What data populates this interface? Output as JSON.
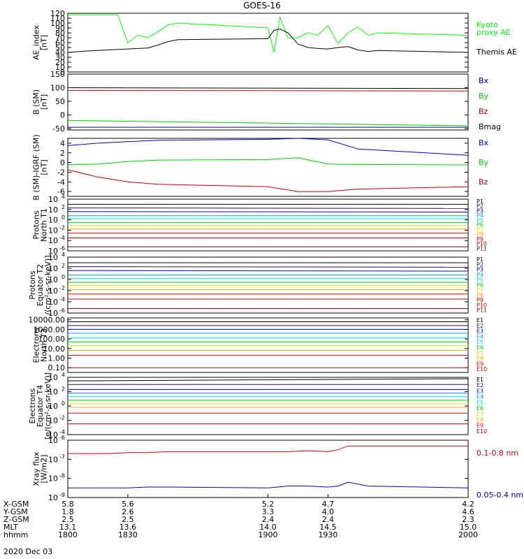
{
  "title": "GOES-16",
  "date_label": "2020 Dec 03",
  "chart_data": [
    {
      "type": "line",
      "panel": "ae_index",
      "ylabel": [
        "AE_index",
        "[nT]"
      ],
      "ylim": [
        0,
        120
      ],
      "yticks": [
        0,
        10,
        20,
        30,
        40,
        50,
        60,
        70,
        80,
        90,
        100,
        110,
        120
      ],
      "yticklabels": [
        "0",
        "10",
        "20",
        "30",
        "40",
        "50",
        "60",
        "70",
        "80",
        "90",
        "100",
        "110",
        "120"
      ],
      "x": [
        1800,
        1810,
        1820,
        1825,
        1830,
        1835,
        1840,
        1845,
        1850,
        1855,
        1900,
        1903,
        1906,
        1910,
        1915,
        1920,
        1925,
        1930,
        1935,
        1940,
        1945,
        1950,
        1955,
        2000
      ],
      "series": [
        {
          "name": "Kyoto proxy AE",
          "legend": [
            "Kyoto",
            "proxy AE"
          ],
          "color": "#00ff00",
          "values": [
            117,
            117,
            117,
            117,
            60,
            75,
            70,
            82,
            96,
            100,
            90,
            40,
            112,
            70,
            70,
            80,
            75,
            95,
            58,
            80,
            92,
            75,
            80,
            75
          ]
        },
        {
          "name": "Themis AE",
          "legend": [
            "Themis AE"
          ],
          "color": "#000000",
          "values": [
            40,
            43,
            45,
            46,
            47,
            48,
            49,
            55,
            62,
            66,
            68,
            85,
            88,
            80,
            57,
            50,
            48,
            47,
            50,
            52,
            45,
            42,
            44,
            40
          ]
        }
      ]
    },
    {
      "type": "line",
      "panel": "b_sm",
      "ylabel": [
        "B (SM)",
        "[nT]"
      ],
      "ylim": [
        -55,
        150
      ],
      "yticks": [
        -50,
        0,
        50,
        100,
        150
      ],
      "yticklabels": [
        "-50",
        "0",
        "50",
        "100",
        "150"
      ],
      "x": [
        1800,
        2000
      ],
      "series": [
        {
          "name": "Bx",
          "color": "#0000cc",
          "values": [
            -45,
            -45
          ]
        },
        {
          "name": "By",
          "color": "#00cc00",
          "values": [
            -20,
            -40
          ]
        },
        {
          "name": "Bz",
          "color": "#cc0000",
          "values": [
            90,
            88
          ]
        },
        {
          "name": "Bmag",
          "color": "#000000",
          "values": [
            100,
            97
          ]
        }
      ]
    },
    {
      "type": "line",
      "panel": "b_minus_igrf",
      "ylabel": [
        "B (SM)-IGRF (SM)",
        "[nT]"
      ],
      "ylim": [
        -7,
        5
      ],
      "yticks": [
        -6,
        -4,
        -2,
        0,
        2,
        4
      ],
      "yticklabels": [
        "-6",
        "-4",
        "-2",
        "0",
        "2",
        "4"
      ],
      "x": [
        1800,
        1815,
        1830,
        1845,
        1900,
        1915,
        1930,
        1945,
        2000
      ],
      "series": [
        {
          "name": "Bx",
          "color": "#0000cc",
          "values": [
            3.5,
            4.0,
            4.3,
            4.6,
            4.8,
            5.0,
            4.7,
            2.8,
            1.5
          ]
        },
        {
          "name": "By",
          "color": "#00cc00",
          "values": [
            -0.5,
            -0.3,
            0.2,
            0.5,
            0.6,
            1.0,
            -0.3,
            -0.4,
            -0.5
          ]
        },
        {
          "name": "Bz",
          "color": "#cc0000",
          "values": [
            -1.5,
            -3.0,
            -4.0,
            -4.5,
            -5.0,
            -6.0,
            -6.0,
            -5.5,
            -5.0
          ]
        }
      ]
    },
    {
      "type": "line",
      "panel": "protons_north_t1",
      "yscale": "log",
      "ylabel": [
        "Protons",
        "North T1"
      ],
      "ylim_exp": [
        -6,
        4
      ],
      "ytick_exps": [
        -6,
        -4,
        -2,
        0,
        2,
        4
      ],
      "yticklabels": [
        "10",
        "10",
        "10",
        "10",
        "10",
        "10"
      ],
      "ytick_superscripts": [
        "-6",
        "-4",
        "-2",
        "0",
        "2",
        "4"
      ],
      "x": [
        1800,
        2000
      ],
      "series": [
        {
          "name": "P1",
          "color": "#000000",
          "exp": [
            3.0,
            3.0
          ]
        },
        {
          "name": "P2",
          "color": "#3a0066",
          "exp": [
            2.3,
            2.2
          ]
        },
        {
          "name": "P3",
          "color": "#0000cc",
          "exp": [
            1.6,
            1.5
          ]
        },
        {
          "name": "P4",
          "color": "#0099ff",
          "exp": [
            0.8,
            0.8
          ]
        },
        {
          "name": "P5",
          "color": "#00dddd",
          "exp": [
            0.2,
            0.2
          ]
        },
        {
          "name": "P6",
          "color": "#00cc00",
          "exp": [
            -0.5,
            -0.5
          ]
        },
        {
          "name": "P7",
          "color": "#dddd00",
          "exp": [
            -1.1,
            -1.1
          ]
        },
        {
          "name": "P8",
          "color": "#ffaa00",
          "exp": [
            -1.8,
            -1.8
          ]
        },
        {
          "name": "P9",
          "color": "#ee0000",
          "exp": [
            -2.6,
            -2.6
          ]
        },
        {
          "name": "P10",
          "color": "#bb0000",
          "exp": [
            -3.5,
            -3.5
          ]
        },
        {
          "name": "P11",
          "color": "#880000",
          "exp": [
            -5.2,
            -5.2
          ]
        }
      ],
      "legend": [
        "P1",
        "P2",
        "P3",
        "P4",
        "P5",
        "P6",
        "P7",
        "P8",
        "P9",
        "P10",
        "P11"
      ]
    },
    {
      "type": "line",
      "panel": "protons_equator_t2",
      "yscale": "log",
      "ylabel": [
        "Protons",
        "Equator T2",
        "/(cm²-s-sr-keV)]"
      ],
      "ylim_exp": [
        -6,
        4
      ],
      "ytick_exps": [
        -6,
        -4,
        -2,
        0,
        2,
        4
      ],
      "yticklabels": [
        "10",
        "10",
        "10",
        "10",
        "10",
        "10"
      ],
      "ytick_superscripts": [
        "-6",
        "-4",
        "-2",
        "0",
        "2",
        "4"
      ],
      "x": [
        1800,
        2000
      ],
      "series": [
        {
          "name": "P1",
          "color": "#000000",
          "exp": [
            3.0,
            3.0
          ]
        },
        {
          "name": "P2",
          "color": "#3a0066",
          "exp": [
            2.3,
            2.2
          ]
        },
        {
          "name": "P3",
          "color": "#0000cc",
          "exp": [
            1.6,
            1.5
          ]
        },
        {
          "name": "P4",
          "color": "#0099ff",
          "exp": [
            0.8,
            0.8
          ]
        },
        {
          "name": "P5",
          "color": "#00dddd",
          "exp": [
            0.2,
            0.2
          ]
        },
        {
          "name": "P6",
          "color": "#00cc00",
          "exp": [
            -0.5,
            -0.5
          ]
        },
        {
          "name": "P7",
          "color": "#dddd00",
          "exp": [
            -1.1,
            -1.1
          ]
        },
        {
          "name": "P8",
          "color": "#ffaa00",
          "exp": [
            -1.8,
            -1.8
          ]
        },
        {
          "name": "P9",
          "color": "#ee0000",
          "exp": [
            -2.6,
            -2.6
          ]
        },
        {
          "name": "P10",
          "color": "#bb0000",
          "exp": [
            -3.5,
            -3.5
          ]
        },
        {
          "name": "P11",
          "color": "#880000",
          "exp": [
            -5.2,
            -5.2
          ]
        }
      ],
      "legend": [
        "P1",
        "P2",
        "P3",
        "P4",
        "P5",
        "P6",
        "P7",
        "P8",
        "P9",
        "P10",
        "P11"
      ]
    },
    {
      "type": "line",
      "panel": "electrons_north_t3",
      "yscale": "log",
      "ylabel": [
        "Electrons",
        "North T3"
      ],
      "ylim_exp": [
        -1.5,
        4.2
      ],
      "ytick_exps": [
        -1,
        0,
        1,
        2,
        3,
        4
      ],
      "yticklabels": [
        "0.10",
        "1.00",
        "10.00",
        "100.00",
        "1000.00",
        "10000.00"
      ],
      "x": [
        1800,
        2000
      ],
      "series": [
        {
          "name": "E1",
          "color": "#000000",
          "exp": [
            3.8,
            3.8
          ]
        },
        {
          "name": "E2",
          "color": "#3a0066",
          "exp": [
            3.4,
            3.4
          ]
        },
        {
          "name": "E3",
          "color": "#0000cc",
          "exp": [
            3.0,
            3.0
          ]
        },
        {
          "name": "E4",
          "color": "#0099ff",
          "exp": [
            2.6,
            2.6
          ]
        },
        {
          "name": "E5",
          "color": "#00dddd",
          "exp": [
            2.1,
            2.1
          ]
        },
        {
          "name": "E6",
          "color": "#00cc00",
          "exp": [
            1.7,
            1.7
          ]
        },
        {
          "name": "E7",
          "color": "#dddd00",
          "exp": [
            1.3,
            1.3
          ]
        },
        {
          "name": "E8",
          "color": "#ffaa00",
          "exp": [
            0.8,
            0.8
          ]
        },
        {
          "name": "E9",
          "color": "#ee0000",
          "exp": [
            0.3,
            0.3
          ]
        },
        {
          "name": "E10",
          "color": "#bb0000",
          "exp": [
            -1.0,
            -1.0
          ]
        }
      ],
      "legend": [
        "E1",
        "E2",
        "E3",
        "E4",
        "E5",
        "E6",
        "E7",
        "E8",
        "E9",
        "E10"
      ]
    },
    {
      "type": "line",
      "panel": "electrons_equator_t4",
      "yscale": "log",
      "ylabel": [
        "Electrons",
        "Equator T4",
        "[e/(cm²-s-sr-keV)]"
      ],
      "ylim_exp": [
        -4,
        4
      ],
      "ytick_exps": [
        -4,
        -2,
        0,
        2,
        4
      ],
      "yticklabels": [
        "10",
        "10",
        "10",
        "10",
        "10"
      ],
      "ytick_superscripts": [
        "-4",
        "-2",
        "0",
        "2",
        "4"
      ],
      "x": [
        1800,
        2000
      ],
      "series": [
        {
          "name": "E1",
          "color": "#000000",
          "exp": [
            3.5,
            3.8
          ]
        },
        {
          "name": "E2",
          "color": "#3a0066",
          "exp": [
            3.0,
            3.0
          ]
        },
        {
          "name": "E3",
          "color": "#0000cc",
          "exp": [
            2.3,
            2.3
          ]
        },
        {
          "name": "E4",
          "color": "#0099ff",
          "exp": [
            1.8,
            1.8
          ]
        },
        {
          "name": "E5",
          "color": "#00dddd",
          "exp": [
            1.3,
            1.3
          ]
        },
        {
          "name": "E6",
          "color": "#00cc00",
          "exp": [
            0.8,
            0.8
          ]
        },
        {
          "name": "E7",
          "color": "#dddd00",
          "exp": [
            0.3,
            0.3
          ]
        },
        {
          "name": "E8",
          "color": "#ffaa00",
          "exp": [
            -0.2,
            -0.2
          ]
        },
        {
          "name": "E9",
          "color": "#ee0000",
          "exp": [
            -1.0,
            -1.0
          ]
        },
        {
          "name": "E10",
          "color": "#bb0000",
          "exp": [
            -2.5,
            -2.5
          ]
        }
      ],
      "legend": [
        "E1",
        "E2",
        "E3",
        "E4",
        "E5",
        "E6",
        "E7",
        "E8",
        "E9",
        "E10"
      ]
    },
    {
      "type": "line",
      "panel": "xray_flux",
      "yscale": "log",
      "ylabel": [
        "Xray flux",
        "[W/m2]"
      ],
      "ylim_exp": [
        -9,
        -6
      ],
      "ytick_exps": [
        -9,
        -8,
        -7,
        -6
      ],
      "yticklabels": [
        "10",
        "10",
        "10",
        "10"
      ],
      "ytick_superscripts": [
        "-9",
        "-8",
        "-7",
        "-6"
      ],
      "x": [
        1800,
        1810,
        1820,
        1830,
        1840,
        1850,
        1900,
        1910,
        1920,
        1930,
        1935,
        1940,
        1945,
        1950,
        2000
      ],
      "series": [
        {
          "name": "0.1-0.8 nm",
          "color": "#cc0000",
          "exp": [
            -6.7,
            -6.7,
            -6.7,
            -6.65,
            -6.65,
            -6.6,
            -6.6,
            -6.6,
            -6.55,
            -6.6,
            -6.5,
            -6.3,
            -6.3,
            -6.3,
            -6.3
          ]
        },
        {
          "name": "0.05-0.4 nm",
          "color": "#0000cc",
          "exp": [
            -8.5,
            -8.5,
            -8.5,
            -8.5,
            -8.45,
            -8.45,
            -8.5,
            -8.4,
            -8.4,
            -8.45,
            -8.4,
            -8.2,
            -8.3,
            -8.4,
            -8.5
          ]
        }
      ],
      "legend": [
        "0.1-0.8 nm",
        "0.05-0.4 nm"
      ]
    }
  ],
  "x_axis": {
    "range": [
      1800,
      2000
    ],
    "rows": [
      {
        "label": "X-GSM",
        "values": [
          "5.8",
          "5.6",
          "5.2",
          "4.7",
          "4.2"
        ]
      },
      {
        "label": "Y-GSM",
        "values": [
          "1.8",
          "2.6",
          "3.3",
          "4.0",
          "4.6"
        ]
      },
      {
        "label": "Z-GSM",
        "values": [
          "2.5",
          "2.5",
          "2.4",
          "2.4",
          "2.3"
        ]
      },
      {
        "label": "MLT",
        "values": [
          "13.1",
          "13.6",
          "14.0",
          "14.5",
          "15.0"
        ]
      },
      {
        "label": "hhmm",
        "values": [
          "1800",
          "1830",
          "1900",
          "1930",
          "2000"
        ]
      }
    ]
  }
}
